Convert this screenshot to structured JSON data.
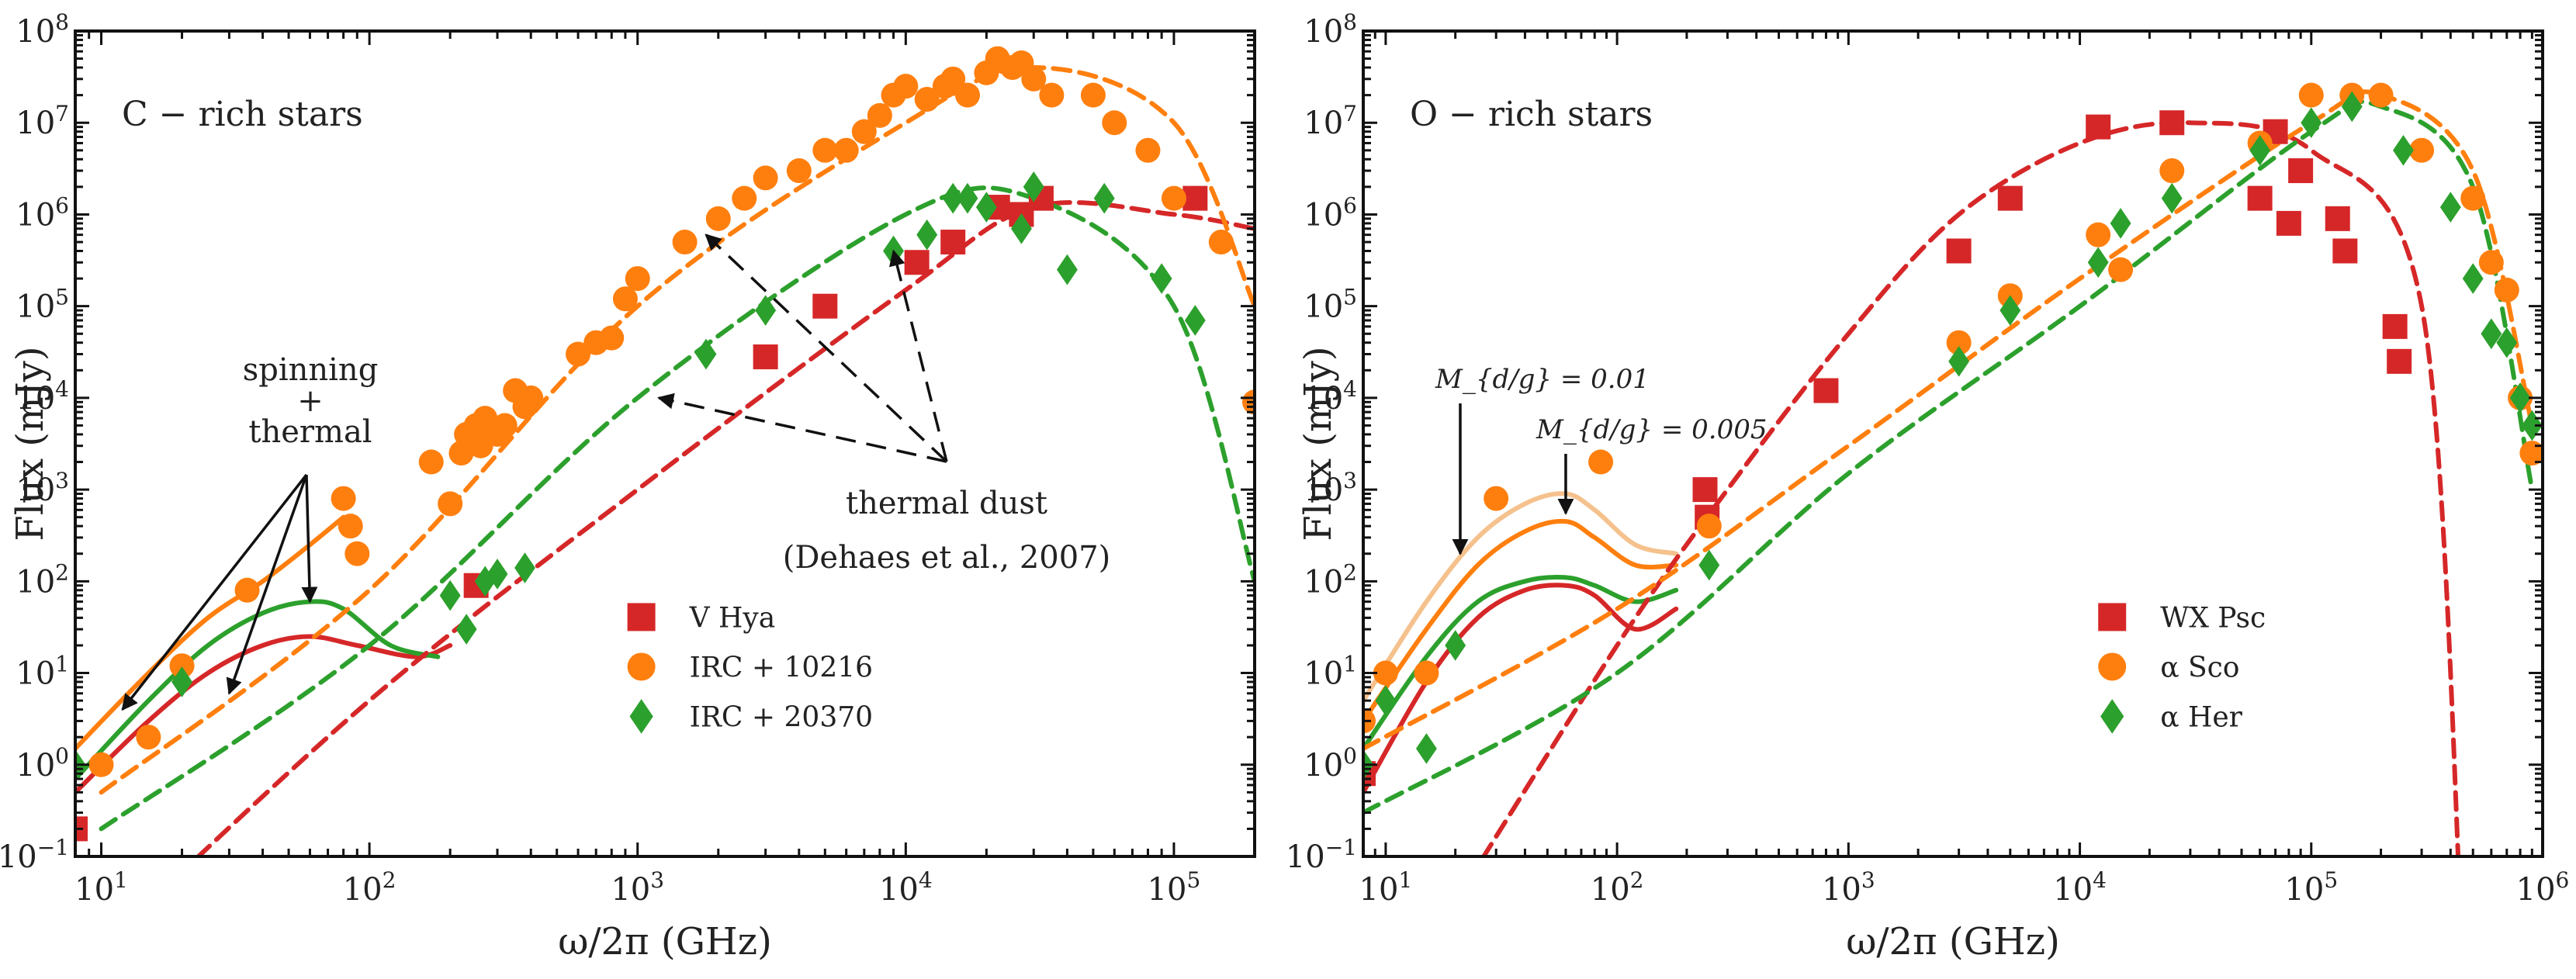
{
  "figure": {
    "x_unit": "GHz",
    "y_unit": "mJy"
  },
  "chart_data": [
    {
      "type": "scatter",
      "panel": "left",
      "title": "C − rich stars",
      "xlabel": "ω/2π (GHz)",
      "ylabel": "Flux (mJy)",
      "xscale": "log",
      "yscale": "log",
      "xlim": [
        8,
        200000
      ],
      "ylim": [
        0.1,
        100000000
      ],
      "x_tick_labels": [
        "10^1",
        "10^2",
        "10^3",
        "10^4",
        "10^5"
      ],
      "y_tick_labels": [
        "10^−1",
        "10^0",
        "10^1",
        "10^2",
        "10^3",
        "10^4",
        "10^5",
        "10^6",
        "10^7",
        "10^8"
      ],
      "legend_position": "center-right",
      "series": [
        {
          "name": "V Hya",
          "marker": "square",
          "color": "#d62728",
          "x": [
            8,
            250,
            3000,
            5000,
            11000,
            15000,
            22000,
            27000,
            32000,
            120000
          ],
          "y": [
            0.2,
            90,
            28000,
            100000,
            300000,
            500000,
            1200000,
            1000000,
            1500000,
            1500000
          ]
        },
        {
          "name": "IRC + 10216",
          "marker": "circle",
          "color": "#ff7f0e",
          "x": [
            10,
            15,
            20,
            35,
            80,
            85,
            90,
            170,
            200,
            220,
            230,
            250,
            260,
            270,
            300,
            320,
            350,
            380,
            400,
            600,
            700,
            800,
            900,
            1000,
            1500,
            2000,
            2500,
            3000,
            4000,
            5000,
            6000,
            7000,
            8000,
            9000,
            10000,
            12000,
            14000,
            15000,
            17000,
            20000,
            22000,
            25000,
            27000,
            30000,
            35000,
            50000,
            60000,
            80000,
            100000,
            150000,
            200000
          ],
          "y": [
            1,
            2,
            12,
            80,
            800,
            400,
            200,
            2000,
            700,
            2500,
            4000,
            5000,
            3000,
            6000,
            4000,
            5000,
            12000,
            8000,
            10000,
            30000,
            40000,
            45000,
            120000,
            200000,
            500000,
            900000,
            1500000,
            2500000,
            3000000,
            5000000,
            5000000,
            8000000,
            12000000,
            20000000,
            25000000,
            18000000,
            25000000,
            30000000,
            20000000,
            35000000,
            50000000,
            40000000,
            45000000,
            30000000,
            20000000,
            20000000,
            10000000,
            5000000,
            1500000,
            500000,
            9000
          ]
        },
        {
          "name": "IRC + 20370",
          "marker": "diamond",
          "color": "#2ca02c",
          "x": [
            8,
            20,
            200,
            230,
            270,
            300,
            380,
            1800,
            3000,
            9000,
            12000,
            15000,
            17000,
            20000,
            27000,
            30000,
            40000,
            55000,
            90000,
            120000
          ],
          "y": [
            1,
            8,
            70,
            30,
            100,
            120,
            140,
            30000,
            90000,
            400000,
            600000,
            1500000,
            1500000,
            1200000,
            700000,
            2000000,
            250000,
            1500000,
            200000,
            70000
          ]
        }
      ],
      "model_curves": [
        {
          "name": "V Hya spinning + thermal",
          "style": "solid",
          "color": "#d62728",
          "x": [
            8,
            15,
            25,
            40,
            60,
            90,
            150,
            200
          ],
          "y": [
            0.5,
            3,
            10,
            20,
            25,
            20,
            15,
            20
          ]
        },
        {
          "name": "IRC + 10216 spinning + thermal",
          "style": "solid",
          "color": "#ff7f0e",
          "x": [
            8,
            15,
            25,
            40,
            60,
            80
          ],
          "y": [
            1.5,
            10,
            40,
            100,
            250,
            500
          ]
        },
        {
          "name": "IRC + 20370 spinning + thermal",
          "style": "solid",
          "color": "#2ca02c",
          "x": [
            8,
            15,
            25,
            40,
            60,
            80,
            120,
            180
          ],
          "y": [
            0.7,
            5,
            20,
            45,
            60,
            50,
            20,
            15
          ]
        },
        {
          "name": "V Hya thermal dust",
          "style": "dashed",
          "color": "#d62728",
          "x": [
            10,
            100,
            1000,
            10000,
            30000,
            100000,
            200000
          ],
          "y": [
            0.01,
            5,
            1000,
            150000,
            1200000,
            1000000,
            700000
          ]
        },
        {
          "name": "IRC + 10216 thermal dust",
          "style": "dashed",
          "color": "#ff7f0e",
          "x": [
            10,
            100,
            1000,
            10000,
            30000,
            100000,
            200000
          ],
          "y": [
            0.5,
            80,
            100000,
            10000000,
            40000000,
            10000000,
            100000
          ]
        },
        {
          "name": "IRC + 20370 thermal dust",
          "style": "dashed",
          "color": "#2ca02c",
          "x": [
            10,
            100,
            1000,
            10000,
            30000,
            100000,
            200000
          ],
          "y": [
            0.2,
            20,
            10000,
            1000000,
            1500000,
            100000,
            100
          ]
        }
      ],
      "annotations": [
        {
          "text": "spinning",
          "x": 30,
          "y": 3000
        },
        {
          "text": "+",
          "x": 30,
          "y": 1500
        },
        {
          "text": "thermal",
          "x": 30,
          "y": 800
        },
        {
          "text": "thermal dust",
          "x": 25000,
          "y": 1000
        },
        {
          "text": "(Dehaes et al., 2007)",
          "x": 25000,
          "y": 90
        }
      ]
    },
    {
      "type": "scatter",
      "panel": "right",
      "title": "O − rich stars",
      "xlabel": "ω/2π (GHz)",
      "ylabel": "Flux (mJy)",
      "xscale": "log",
      "yscale": "log",
      "xlim": [
        8,
        1000000
      ],
      "ylim": [
        0.1,
        100000000
      ],
      "x_tick_labels": [
        "10^1",
        "10^2",
        "10^3",
        "10^4",
        "10^5",
        "10^6"
      ],
      "y_tick_labels": [
        "10^−1",
        "10^0",
        "10^1",
        "10^2",
        "10^3",
        "10^4",
        "10^5",
        "10^6",
        "10^7",
        "10^8"
      ],
      "legend_position": "lower-right",
      "series": [
        {
          "name": "WX Psc",
          "marker": "square",
          "color": "#d62728",
          "x": [
            8,
            240,
            245,
            800,
            3000,
            5000,
            12000,
            25000,
            60000,
            70000,
            80000,
            90000,
            130000,
            140000,
            230000,
            240000
          ],
          "y": [
            0.8,
            1000,
            500,
            12000,
            400000,
            1500000,
            9000000,
            10000000,
            1500000,
            8000000,
            800000,
            3000000,
            900000,
            400000,
            60000,
            25000
          ]
        },
        {
          "name": "α Sco",
          "marker": "circle",
          "color": "#ff7f0e",
          "x": [
            8,
            10,
            15,
            30,
            85,
            250,
            3000,
            5000,
            12000,
            15000,
            25000,
            60000,
            100000,
            150000,
            200000,
            300000,
            500000,
            600000,
            700000,
            800000,
            900000
          ],
          "y": [
            3,
            10,
            10,
            800,
            2000,
            400,
            40000,
            130000,
            600000,
            250000,
            3000000,
            6000000,
            20000000,
            20000000,
            20000000,
            5000000,
            1500000,
            300000,
            150000,
            10000,
            2500
          ]
        },
        {
          "name": "α Her",
          "marker": "diamond",
          "color": "#2ca02c",
          "x": [
            8,
            10,
            15,
            20,
            250,
            3000,
            5000,
            12000,
            15000,
            25000,
            60000,
            100000,
            150000,
            250000,
            400000,
            500000,
            600000,
            700000,
            800000,
            900000
          ],
          "y": [
            1,
            5,
            1.5,
            20,
            150,
            25000,
            90000,
            300000,
            800000,
            1500000,
            5000000,
            10000000,
            15000000,
            5000000,
            1200000,
            200000,
            50000,
            40000,
            10000,
            5000
          ]
        }
      ],
      "model_curves": [
        {
          "name": "α Sco M_d/g = 0.01",
          "style": "solid",
          "color": "#f5c18d",
          "x": [
            8,
            15,
            25,
            40,
            60,
            80,
            120,
            180
          ],
          "y": [
            5,
            60,
            300,
            700,
            900,
            600,
            250,
            200
          ]
        },
        {
          "name": "α Sco M_d/g = 0.005",
          "style": "solid",
          "color": "#ff7f0e",
          "x": [
            8,
            15,
            25,
            40,
            60,
            80,
            120,
            180
          ],
          "y": [
            3,
            30,
            150,
            350,
            450,
            300,
            150,
            150
          ]
        },
        {
          "name": "α Her spinning + thermal",
          "style": "solid",
          "color": "#2ca02c",
          "x": [
            8,
            15,
            25,
            40,
            60,
            80,
            120,
            180
          ],
          "y": [
            1.5,
            15,
            60,
            100,
            110,
            90,
            60,
            80
          ]
        },
        {
          "name": "WX Psc spinning + thermal",
          "style": "solid",
          "color": "#d62728",
          "x": [
            8,
            15,
            25,
            40,
            60,
            80,
            120,
            180
          ],
          "y": [
            0.5,
            8,
            40,
            80,
            90,
            70,
            30,
            50
          ]
        },
        {
          "name": "WX Psc thermal dust",
          "style": "dashed",
          "color": "#d62728",
          "x": [
            15,
            100,
            300,
            1000,
            3000,
            10000,
            30000,
            100000,
            300000,
            450000
          ],
          "y": [
            0.01,
            20,
            1000,
            50000,
            1000000,
            6000000,
            10000000,
            5000000,
            100000,
            0.01
          ]
        },
        {
          "name": "α Sco thermal dust",
          "style": "dashed",
          "color": "#ff7f0e",
          "x": [
            8,
            100,
            1000,
            10000,
            100000,
            200000,
            500000,
            900000
          ],
          "y": [
            1.5,
            50,
            3000,
            200000,
            10000000,
            20000000,
            3000000,
            5000
          ]
        },
        {
          "name": "α Her thermal dust",
          "style": "dashed",
          "color": "#2ca02c",
          "x": [
            8,
            100,
            1000,
            10000,
            100000,
            200000,
            500000,
            900000
          ],
          "y": [
            0.3,
            10,
            1500,
            100000,
            8000000,
            15000000,
            2000000,
            1000
          ]
        }
      ],
      "annotations": [
        {
          "text": "M_{d/g} = 0.01",
          "x": 30,
          "y": 15000
        },
        {
          "text": "M_{d/g} = 0.005",
          "x": 60,
          "y": 5000
        }
      ]
    }
  ]
}
